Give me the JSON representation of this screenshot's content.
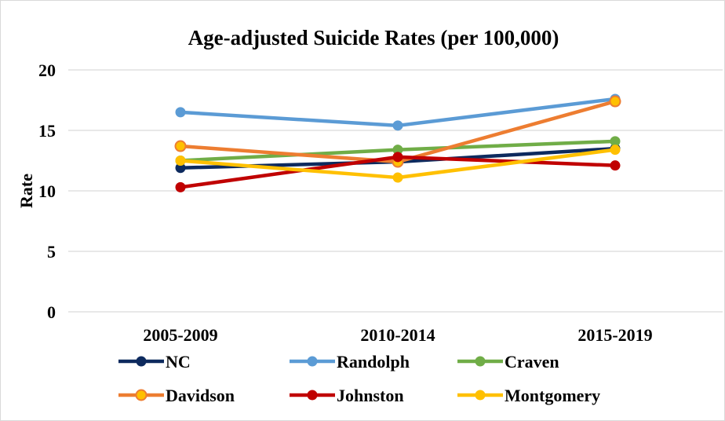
{
  "chart_data": {
    "type": "line",
    "title": "Age-adjusted Suicide Rates (per 100,000)",
    "xlabel": "",
    "ylabel": "Rate",
    "ylim": [
      0,
      20
    ],
    "yticks": [
      0,
      5,
      10,
      15,
      20
    ],
    "grid": true,
    "legend_position": "bottom",
    "categories": [
      "2005-2009",
      "2010-2014",
      "2015-2019"
    ],
    "series": [
      {
        "name": "NC",
        "color": "#0d2a5e",
        "values": [
          11.9,
          12.4,
          13.5
        ]
      },
      {
        "name": "Randolph",
        "color": "#5b9bd5",
        "values": [
          16.5,
          15.4,
          17.6
        ]
      },
      {
        "name": "Craven",
        "color": "#70ad47",
        "values": [
          12.5,
          13.4,
          14.1
        ]
      },
      {
        "name": "Davidson",
        "color": "#ed7d31",
        "values": [
          13.7,
          12.4,
          17.4
        ]
      },
      {
        "name": "Johnston",
        "color": "#c00000",
        "values": [
          10.3,
          12.8,
          12.1
        ]
      },
      {
        "name": "Montgomery",
        "color": "#ffc000",
        "values": [
          12.5,
          11.1,
          13.4
        ]
      }
    ]
  }
}
